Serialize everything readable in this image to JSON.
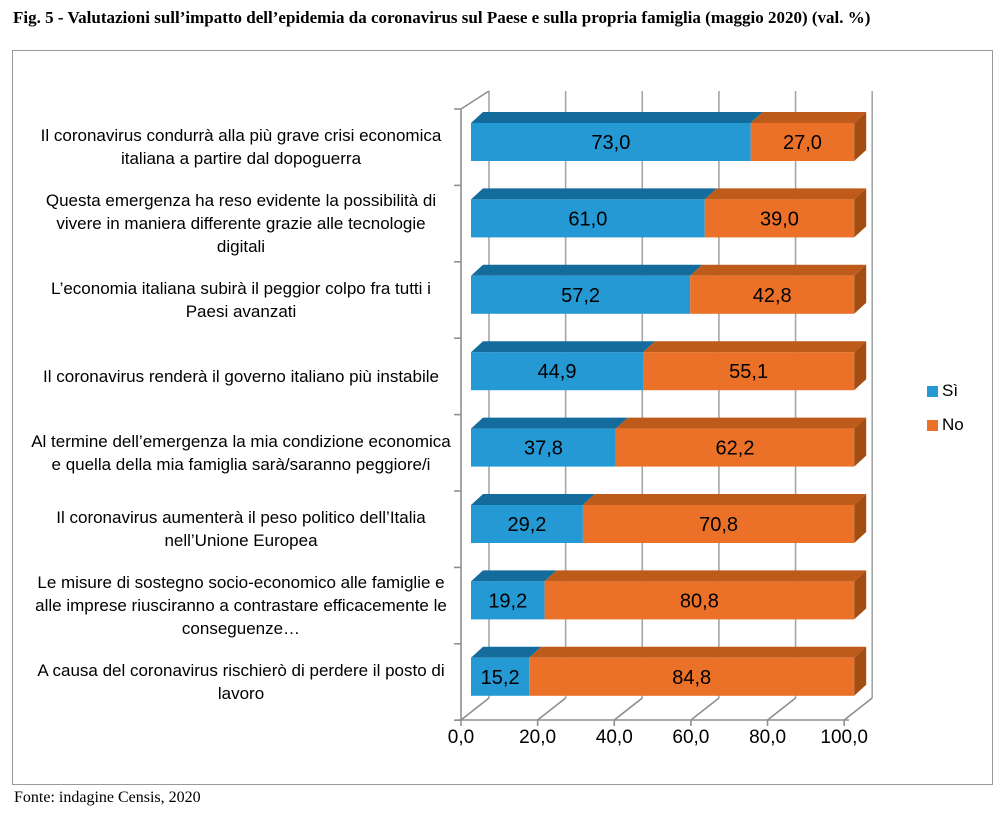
{
  "title": "Fig. 5 - Valutazioni sull’impatto dell’epidemia da coronavirus sul Paese e sulla propria famiglia (maggio 2020) (val. %)",
  "source": "Fonte: indagine Censis, 2020",
  "legend": {
    "items": [
      {
        "label": "Sì"
      },
      {
        "label": "No"
      }
    ]
  },
  "chart_data": {
    "type": "bar",
    "orientation": "horizontal",
    "stacked": true,
    "style": "3d",
    "title": "Fig. 5 - Valutazioni sull’impatto dell’epidemia da coronavirus sul Paese e sulla propria famiglia (maggio 2020) (val. %)",
    "categories": [
      "Il coronavirus condurrà alla più grave crisi economica italiana a partire dal dopoguerra",
      "Questa emergenza ha reso evidente la possibilità di vivere in maniera differente grazie alle tecnologie digitali",
      "L’economia italiana subirà il peggior colpo fra tutti i Paesi avanzati",
      "Il coronavirus renderà il governo italiano più instabile",
      "Al termine dell’emergenza la mia condizione economica e quella della mia famiglia sarà/saranno peggiore/i",
      "Il coronavirus aumenterà il peso politico dell’Italia nell’Unione Europea",
      "Le misure di sostegno socio-economico alle famiglie e alle imprese riusciranno a contrastare efficacemente le conseguenze…",
      "A causa del coronavirus rischierò di perdere il posto di lavoro"
    ],
    "series": [
      {
        "name": "Sì",
        "color": "#2599D4",
        "values": [
          73.0,
          61.0,
          57.2,
          44.9,
          37.8,
          29.2,
          19.2,
          15.2
        ]
      },
      {
        "name": "No",
        "color": "#EB7028",
        "values": [
          27.0,
          39.0,
          42.8,
          55.1,
          62.2,
          70.8,
          80.8,
          84.8
        ]
      }
    ],
    "xlim": [
      0,
      100
    ],
    "x_ticks": [
      "0,0",
      "20,0",
      "40,0",
      "60,0",
      "80,0",
      "100,0"
    ],
    "decimal_separator": ",",
    "grid": "vertical",
    "legend_position": "right",
    "colors": {
      "si_front": "#2599D4",
      "si_top": "#136C9C",
      "no_front": "#EB7028",
      "no_top": "#BE5A1A",
      "no_side": "#A34D13",
      "grid": "#A6A6A6",
      "axis": "#8F8F8F",
      "box_border": "#999999",
      "text": "#000000"
    }
  }
}
